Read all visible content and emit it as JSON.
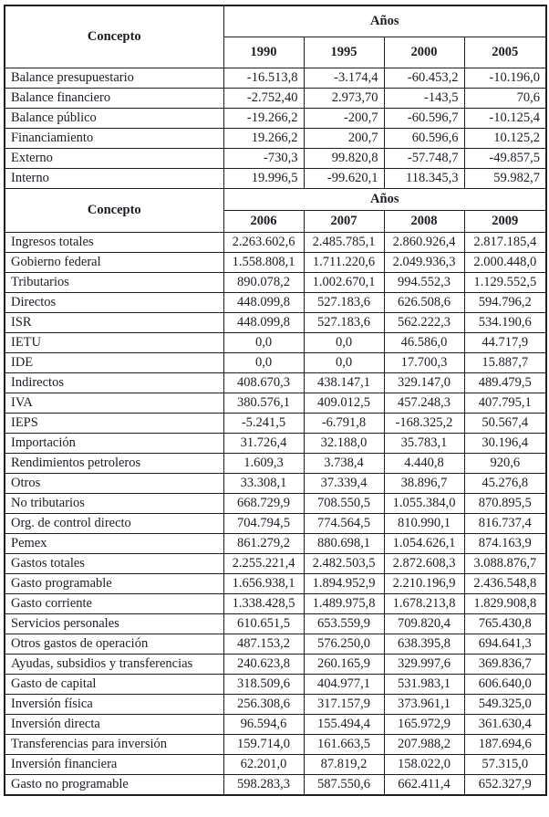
{
  "table": {
    "concept_header": "Concepto",
    "years_group_header": "Años",
    "sections": [
      {
        "name": "balances-1990-2005",
        "years": [
          "1990",
          "1995",
          "2000",
          "2005"
        ],
        "value_alignment": "right",
        "rows": [
          {
            "label": "Balance presupuestario",
            "values": [
              "-16.513,8",
              "-3.174,4",
              "-60.453,2",
              "-10.196,0"
            ]
          },
          {
            "label": "Balance financiero",
            "values": [
              "-2.752,40",
              "2.973,70",
              "-143,5",
              "70,6"
            ]
          },
          {
            "label": "Balance público",
            "values": [
              "-19.266,2",
              "-200,7",
              "-60.596,7",
              "-10.125,4"
            ]
          },
          {
            "label": "Financiamiento",
            "values": [
              "19.266,2",
              "200,7",
              "60.596,6",
              "10.125,2"
            ]
          },
          {
            "label": "Externo",
            "values": [
              "-730,3",
              "99.820,8",
              "-57.748,7",
              "-49.857,5"
            ]
          },
          {
            "label": "Interno",
            "values": [
              "19.996,5",
              "-99.620,1",
              "118.345,3",
              "59.982,7"
            ]
          }
        ]
      },
      {
        "name": "ingresos-gastos-2006-2009",
        "years": [
          "2006",
          "2007",
          "2008",
          "2009"
        ],
        "value_alignment": "center",
        "rows": [
          {
            "label": "Ingresos totales",
            "values": [
              "2.263.602,6",
              "2.485.785,1",
              "2.860.926,4",
              "2.817.185,4"
            ]
          },
          {
            "label": "Gobierno federal",
            "values": [
              "1.558.808,1",
              "1.711.220,6",
              "2.049.936,3",
              "2.000.448,0"
            ]
          },
          {
            "label": "Tributarios",
            "values": [
              "890.078,2",
              "1.002.670,1",
              "994.552,3",
              "1.129.552,5"
            ]
          },
          {
            "label": "Directos",
            "values": [
              "448.099,8",
              "527.183,6",
              "626.508,6",
              "594.796,2"
            ]
          },
          {
            "label": "ISR",
            "values": [
              "448.099,8",
              "527.183,6",
              "562.222,3",
              "534.190,6"
            ]
          },
          {
            "label": "IETU",
            "values": [
              "0,0",
              "0,0",
              "46.586,0",
              "44.717,9"
            ]
          },
          {
            "label": "IDE",
            "values": [
              "0,0",
              "0,0",
              "17.700,3",
              "15.887,7"
            ]
          },
          {
            "label": "Indirectos",
            "values": [
              "408.670,3",
              "438.147,1",
              "329.147,0",
              "489.479,5"
            ]
          },
          {
            "label": "IVA",
            "values": [
              "380.576,1",
              "409.012,5",
              "457.248,3",
              "407.795,1"
            ]
          },
          {
            "label": "IEPS",
            "values": [
              "-5.241,5",
              "-6.791,8",
              "-168.325,2",
              "50.567,4"
            ]
          },
          {
            "label": "Importación",
            "values": [
              "31.726,4",
              "32.188,0",
              "35.783,1",
              "30.196,4"
            ]
          },
          {
            "label": "Rendimientos petroleros",
            "values": [
              "1.609,3",
              "3.738,4",
              "4.440,8",
              "920,6"
            ]
          },
          {
            "label": "Otros",
            "values": [
              "33.308,1",
              "37.339,4",
              "38.896,7",
              "45.276,8"
            ]
          },
          {
            "label": "No tributarios",
            "values": [
              "668.729,9",
              "708.550,5",
              "1.055.384,0",
              "870.895,5"
            ]
          },
          {
            "label": "Org. de control directo",
            "values": [
              "704.794,5",
              "774.564,5",
              "810.990,1",
              "816.737,4"
            ]
          },
          {
            "label": "Pemex",
            "values": [
              "861.279,2",
              "880.698,1",
              "1.054.626,1",
              "874.163,9"
            ]
          },
          {
            "label": "Gastos totales",
            "values": [
              "2.255.221,4",
              "2.482.503,5",
              "2.872.608,3",
              "3.088.876,7"
            ]
          },
          {
            "label": "Gasto programable",
            "values": [
              "1.656.938,1",
              "1.894.952,9",
              "2.210.196,9",
              "2.436.548,8"
            ]
          },
          {
            "label": "Gasto corriente",
            "values": [
              "1.338.428,5",
              "1.489.975,8",
              "1.678.213,8",
              "1.829.908,8"
            ]
          },
          {
            "label": "Servicios personales",
            "values": [
              "610.651,5",
              "653.559,9",
              "709.820,4",
              "765.430,8"
            ]
          },
          {
            "label": "Otros gastos de operación",
            "values": [
              "487.153,2",
              "576.250,0",
              "638.395,8",
              "694.641,3"
            ]
          },
          {
            "label": "Ayudas, subsidios y transferencias",
            "values": [
              "240.623,8",
              "260.165,9",
              "329.997,6",
              "369.836,7"
            ]
          },
          {
            "label": "Gasto de capital",
            "values": [
              "318.509,6",
              "404.977,1",
              "531.983,1",
              "606.640,0"
            ]
          },
          {
            "label": "Inversión física",
            "values": [
              "256.308,6",
              "317.157,9",
              "373.961,1",
              "549.325,0"
            ]
          },
          {
            "label": "Inversión directa",
            "values": [
              "96.594,6",
              "155.494,4",
              "165.972,9",
              "361.630,4"
            ]
          },
          {
            "label": "Transferencias para inversión",
            "values": [
              "159.714,0",
              "161.663,5",
              "207.988,2",
              "187.694,6"
            ]
          },
          {
            "label": "Inversión financiera",
            "values": [
              "62.201,0",
              "87.819,2",
              "158.022,0",
              "57.315,0"
            ]
          },
          {
            "label": "Gasto no programable",
            "values": [
              "598.283,3",
              "587.550,6",
              "662.411,4",
              "652.327,9"
            ]
          }
        ]
      }
    ]
  }
}
